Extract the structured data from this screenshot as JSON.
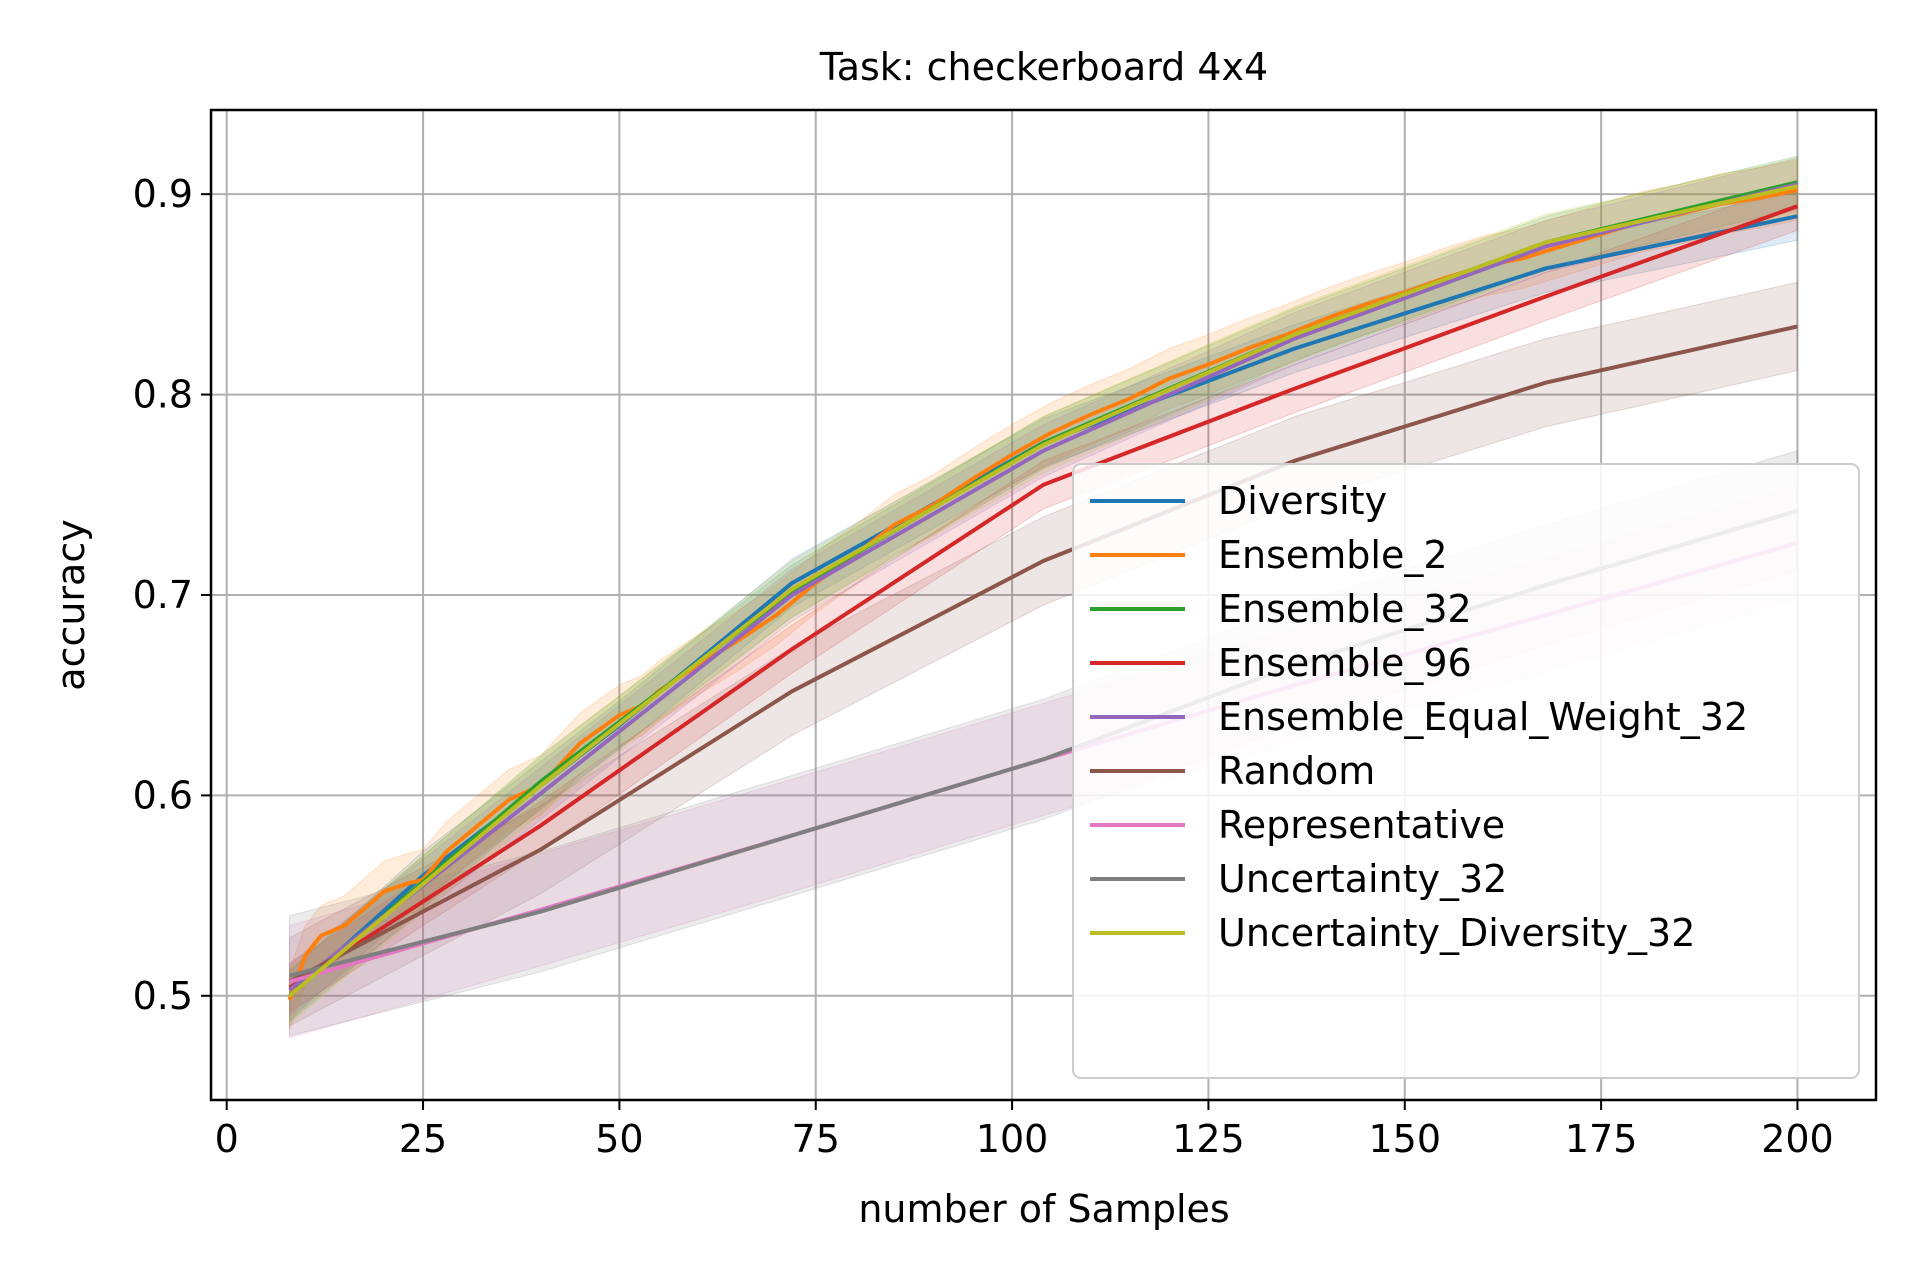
{
  "chart_data": {
    "type": "line",
    "title": "Task: checkerboard 4x4",
    "xlabel": "number of Samples",
    "ylabel": "accuracy",
    "xlim": [
      -2,
      210
    ],
    "ylim": [
      0.448,
      0.942
    ],
    "xticks": [
      0,
      25,
      50,
      75,
      100,
      125,
      150,
      175,
      200
    ],
    "xtick_labels": [
      "0",
      "25",
      "50",
      "75",
      "100",
      "125",
      "150",
      "175",
      "200"
    ],
    "yticks": [
      0.5,
      0.6,
      0.7,
      0.8,
      0.9
    ],
    "ytick_labels": [
      "0.5",
      "0.6",
      "0.7",
      "0.8",
      "0.9"
    ],
    "grid": true,
    "legend_position": "lower-right",
    "band": "shaded confidence band around each line",
    "series": [
      {
        "name": "Diversity",
        "color": "#1f77b4",
        "band": 0.012,
        "x": [
          8,
          25,
          50,
          72,
          104,
          136,
          168,
          200
        ],
        "y": [
          0.5,
          0.56,
          0.635,
          0.706,
          0.776,
          0.823,
          0.863,
          0.889
        ]
      },
      {
        "name": "Ensemble_2",
        "color": "#ff7f0e",
        "band": 0.015,
        "x": [
          8,
          10,
          12,
          15,
          18,
          20,
          23,
          25,
          28,
          32,
          36,
          40,
          45,
          50,
          53,
          55,
          60,
          65,
          70,
          75,
          80,
          85,
          90,
          95,
          100,
          105,
          110,
          115,
          120,
          125,
          130,
          135,
          140,
          145,
          150,
          155,
          160,
          165,
          170,
          175,
          180,
          185,
          190,
          195,
          200
        ],
        "y": [
          0.498,
          0.52,
          0.53,
          0.535,
          0.545,
          0.552,
          0.556,
          0.558,
          0.572,
          0.585,
          0.598,
          0.605,
          0.626,
          0.64,
          0.645,
          0.652,
          0.665,
          0.677,
          0.69,
          0.706,
          0.72,
          0.735,
          0.745,
          0.758,
          0.77,
          0.781,
          0.79,
          0.798,
          0.808,
          0.815,
          0.823,
          0.83,
          0.838,
          0.845,
          0.851,
          0.858,
          0.864,
          0.868,
          0.874,
          0.88,
          0.886,
          0.89,
          0.895,
          0.898,
          0.902
        ]
      },
      {
        "name": "Ensemble_32",
        "color": "#2ca02c",
        "band": 0.013,
        "x": [
          8,
          40,
          72,
          104,
          136,
          168,
          200
        ],
        "y": [
          0.5,
          0.607,
          0.702,
          0.776,
          0.83,
          0.876,
          0.906
        ]
      },
      {
        "name": "Ensemble_96",
        "color": "#d62728",
        "band": 0.012,
        "x": [
          8,
          40,
          72,
          104,
          136,
          168,
          200
        ],
        "y": [
          0.504,
          0.585,
          0.673,
          0.755,
          0.803,
          0.849,
          0.894
        ]
      },
      {
        "name": "Ensemble_Equal_Weight_32",
        "color": "#9467bd",
        "band": 0.013,
        "x": [
          8,
          40,
          72,
          104,
          136,
          168,
          200
        ],
        "y": [
          0.503,
          0.601,
          0.7,
          0.772,
          0.828,
          0.874,
          0.905
        ]
      },
      {
        "name": "Random",
        "color": "#8c564b",
        "band": 0.022,
        "x": [
          8,
          40,
          72,
          104,
          136,
          168,
          200
        ],
        "y": [
          0.507,
          0.573,
          0.652,
          0.717,
          0.767,
          0.806,
          0.834
        ]
      },
      {
        "name": "Representative",
        "color": "#e377c2",
        "band": 0.028,
        "x": [
          8,
          40,
          72,
          104,
          136,
          168,
          200
        ],
        "y": [
          0.507,
          0.543,
          0.58,
          0.618,
          0.655,
          0.69,
          0.726
        ]
      },
      {
        "name": "Uncertainty_32",
        "color": "#7f7f7f",
        "band": 0.03,
        "x": [
          8,
          40,
          72,
          104,
          136,
          168,
          200
        ],
        "y": [
          0.51,
          0.542,
          0.58,
          0.618,
          0.665,
          0.705,
          0.742
        ]
      },
      {
        "name": "Uncertainty_Diversity_32",
        "color": "#bcbd22",
        "band": 0.014,
        "x": [
          8,
          40,
          72,
          104,
          136,
          168,
          200
        ],
        "y": [
          0.5,
          0.605,
          0.703,
          0.775,
          0.83,
          0.876,
          0.904
        ]
      }
    ]
  }
}
